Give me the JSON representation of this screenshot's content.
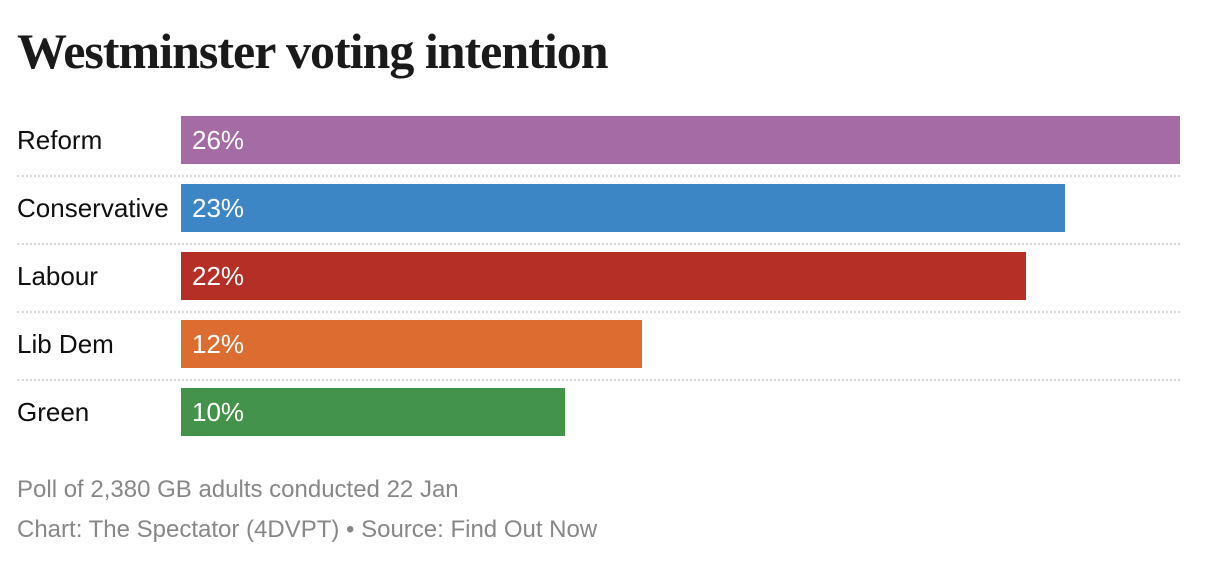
{
  "page": {
    "title": "Westminster voting intention"
  },
  "chart_data": {
    "type": "bar",
    "orientation": "horizontal",
    "title": "Westminster voting intention",
    "categories": [
      "Reform",
      "Conservative",
      "Labour",
      "Lib Dem",
      "Green"
    ],
    "values": [
      26,
      23,
      22,
      12,
      10
    ],
    "value_labels": [
      "26%",
      "23%",
      "22%",
      "12%",
      "10%"
    ],
    "bar_colors": [
      "#a56ba5",
      "#3c86c6",
      "#b52f26",
      "#dc6c2f",
      "#44934a"
    ],
    "xlim": [
      0,
      26
    ],
    "grid": "dotted row separators",
    "legend": "none",
    "value_label_position": "inside-left",
    "value_label_color": "#ffffff"
  },
  "footer": {
    "note": "Poll of 2,380 GB adults conducted 22 Jan",
    "credit": "Chart: The Spectator (4DVPT) • Source: Find Out Now"
  }
}
